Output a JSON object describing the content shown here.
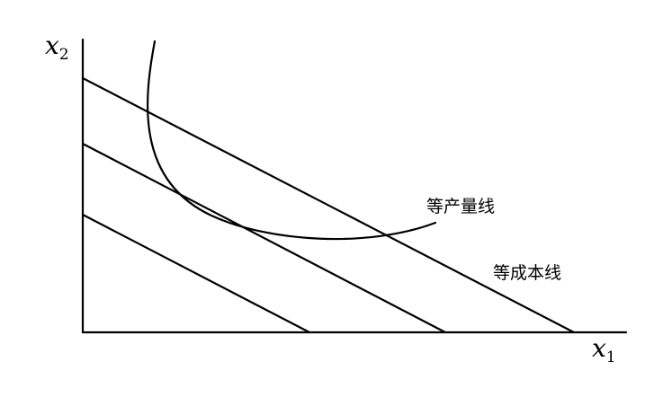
{
  "axes": {
    "x": {
      "symbol": "x",
      "subscript": "1"
    },
    "y": {
      "symbol": "x",
      "subscript": "2"
    }
  },
  "labels": {
    "isoquant": "等产量线",
    "isocost": "等成本线"
  },
  "isocost_line_count": 3
}
